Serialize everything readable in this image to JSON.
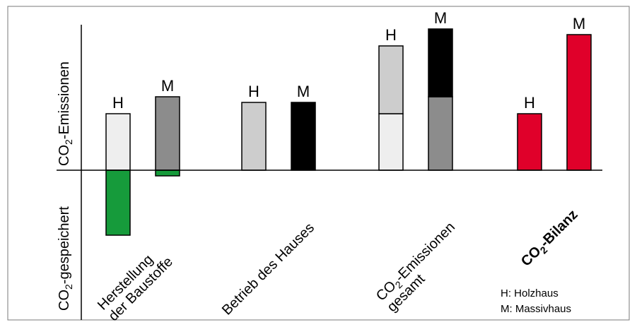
{
  "chart_data": {
    "type": "bar",
    "ylabel_positive_prefix": "CO",
    "ylabel_positive_sub": "2",
    "ylabel_positive_suffix": "-Emissionen",
    "ylabel_negative_prefix": "CO",
    "ylabel_negative_sub": "2",
    "ylabel_negative_suffix": "-gespeichert",
    "groups": [
      {
        "category_lines": [
          "Herstellung",
          "der Baustoffe"
        ],
        "bars": [
          {
            "key": "H",
            "segments": [
              {
                "value": 1.0,
                "color": "#eeeeee"
              },
              {
                "value": -1.15,
                "color": "#169b3b"
              }
            ]
          },
          {
            "key": "M",
            "segments": [
              {
                "value": 1.3,
                "color": "#8c8c8c"
              },
              {
                "value": -0.1,
                "color": "#169b3b"
              }
            ]
          }
        ]
      },
      {
        "category_lines": [
          "Betrieb des Hauses"
        ],
        "bars": [
          {
            "key": "H",
            "segments": [
              {
                "value": 1.2,
                "color": "#cdcdcd"
              }
            ]
          },
          {
            "key": "M",
            "segments": [
              {
                "value": 1.2,
                "color": "#000000"
              }
            ]
          }
        ]
      },
      {
        "category_lines": [
          "CO|2|-Emissionen",
          "gesamt"
        ],
        "bars": [
          {
            "key": "H",
            "segments": [
              {
                "value": 1.0,
                "color": "#eeeeee"
              },
              {
                "value": 1.2,
                "color": "#cdcdcd"
              }
            ]
          },
          {
            "key": "M",
            "segments": [
              {
                "value": 1.3,
                "color": "#8c8c8c"
              },
              {
                "value": 1.2,
                "color": "#000000"
              }
            ]
          }
        ]
      },
      {
        "category_lines": [
          "CO|2|-Bilanz"
        ],
        "category_bold": true,
        "bars": [
          {
            "key": "H",
            "segments": [
              {
                "value": 1.0,
                "color": "#e0002a"
              }
            ]
          },
          {
            "key": "M",
            "segments": [
              {
                "value": 2.4,
                "color": "#e0002a"
              }
            ]
          }
        ]
      }
    ],
    "legend": [
      {
        "key": "H",
        "text": "H:  Holzhaus"
      },
      {
        "key": "M",
        "text": "M:  Massivhaus"
      }
    ]
  }
}
